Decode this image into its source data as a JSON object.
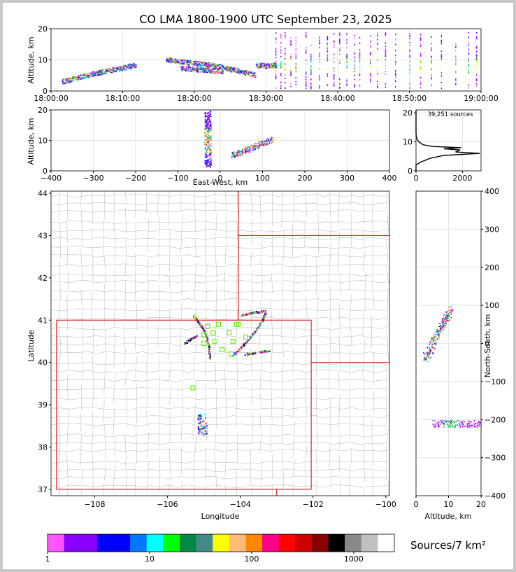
{
  "title": "CO LMA 1800-1900 UTC September 23, 2025",
  "colors": {
    "grid": "#e6e6e6",
    "county": "#c0c0c0",
    "state": "#dd0000",
    "station": "#66ee00",
    "hist_line": "#000000"
  },
  "time_altitude": {
    "type": "scatter",
    "xlabel": "",
    "ylabel": "Altitude, km",
    "x_ticks": [
      "18:00:00",
      "18:10:00",
      "18:20:00",
      "18:30:00",
      "18:40:00",
      "18:50:00",
      "19:00:00"
    ],
    "xlim_min": [
      0,
      60
    ],
    "y_ticks": [
      0,
      10,
      20
    ],
    "ylim": [
      0,
      20
    ],
    "segments": [
      {
        "t0": 1.5,
        "t1": 4.0,
        "a0": 3.0,
        "a1": 4.6
      },
      {
        "t0": 4.0,
        "t1": 7.0,
        "a0": 4.6,
        "a1": 6.2
      },
      {
        "t0": 7.0,
        "t1": 10.0,
        "a0": 6.2,
        "a1": 7.6
      },
      {
        "t0": 10.0,
        "t1": 11.8,
        "a0": 7.6,
        "a1": 8.4
      },
      {
        "t0": 16.0,
        "t1": 18.5,
        "a0": 10.2,
        "a1": 9.4
      },
      {
        "t0": 18.5,
        "t1": 22.5,
        "a0": 9.4,
        "a1": 8.4
      },
      {
        "t0": 22.5,
        "t1": 26.0,
        "a0": 8.4,
        "a1": 6.6
      },
      {
        "t0": 26.0,
        "t1": 28.5,
        "a0": 6.6,
        "a1": 5.2
      },
      {
        "t0": 18.0,
        "t1": 24.0,
        "a0": 7.5,
        "a1": 6.4
      },
      {
        "t0": 28.5,
        "t1": 31.5,
        "a0": 8.3,
        "a1": 8.3
      }
    ],
    "column_times": [
      31.3,
      32.0,
      32.6,
      33.4,
      34.1,
      35.5,
      36.2,
      37.4,
      38.5,
      39.4,
      40.2,
      41.2,
      42.3,
      43.0,
      44.5,
      45.5,
      46.6,
      48.0,
      50.0,
      51.5,
      53.0,
      54.4,
      56.4,
      58.2,
      59.3
    ]
  },
  "ew_altitude": {
    "type": "scatter",
    "xlabel": "East-West, km",
    "ylabel": "Altitude, km",
    "x_ticks": [
      -400,
      -300,
      -200,
      -100,
      0,
      100,
      200,
      300,
      400
    ],
    "xlim": [
      -400,
      400
    ],
    "y_ticks": [
      0,
      10,
      20
    ],
    "ylim": [
      0,
      20
    ],
    "column_x": -30,
    "column_alt": [
      1,
      20
    ],
    "band": {
      "x0": 25,
      "x1": 125,
      "a0": 5.0,
      "a1": 10.5
    }
  },
  "histogram": {
    "type": "line",
    "annotation": "39,251 sources",
    "x_ticks": [
      0,
      2000
    ],
    "xlim": [
      0,
      2800
    ],
    "y_ticks": [
      0,
      10,
      20
    ],
    "ylim": [
      0,
      21
    ],
    "profile": [
      [
        0,
        0
      ],
      [
        0,
        2
      ],
      [
        200,
        3
      ],
      [
        600,
        4.3
      ],
      [
        1200,
        5.3
      ],
      [
        2750,
        6.0
      ],
      [
        1700,
        6.5
      ],
      [
        1900,
        7.2
      ],
      [
        1200,
        7.6
      ],
      [
        1950,
        8.0
      ],
      [
        700,
        8.4
      ],
      [
        300,
        9
      ],
      [
        120,
        10
      ],
      [
        40,
        11
      ],
      [
        10,
        12
      ],
      [
        0,
        13
      ],
      [
        0,
        21
      ]
    ]
  },
  "map": {
    "type": "scatter",
    "xlabel": "Longitude",
    "ylabel": "Latitude",
    "x_ticks": [
      -108,
      -106,
      -104,
      -102,
      -100
    ],
    "xlim": [
      -109.2,
      -99.9
    ],
    "y_ticks": [
      37,
      38,
      39,
      40,
      41,
      42,
      43,
      44
    ],
    "ylim": [
      36.85,
      44.05
    ],
    "stations": [
      [
        -104.6,
        40.9
      ],
      [
        -104.3,
        40.7
      ],
      [
        -104.1,
        40.9
      ],
      [
        -104.5,
        40.3
      ],
      [
        -104.2,
        40.5
      ],
      [
        -103.85,
        40.6
      ],
      [
        -104.9,
        40.85
      ],
      [
        -104.75,
        40.7
      ],
      [
        -105.0,
        40.45
      ],
      [
        -104.7,
        40.5
      ],
      [
        -105.3,
        39.4
      ],
      [
        -104.05,
        40.9
      ],
      [
        -104.25,
        40.2
      ],
      [
        -105.0,
        40.65
      ]
    ],
    "state_lines": [
      [
        [
          -109.05,
          41.0
        ],
        [
          -102.05,
          41.0
        ],
        [
          -102.05,
          37.0
        ],
        [
          -109.05,
          37.0
        ],
        [
          -109.05,
          41.0
        ]
      ],
      [
        [
          -104.05,
          41.0
        ],
        [
          -104.05,
          44.05
        ]
      ],
      [
        [
          -104.05,
          43.0
        ],
        [
          -99.9,
          43.0
        ]
      ],
      [
        [
          -102.05,
          40.0
        ],
        [
          -99.9,
          40.0
        ]
      ],
      [
        [
          -103.0,
          37.0
        ],
        [
          -103.0,
          36.85
        ]
      ]
    ],
    "lightning_paths": [
      [
        [
          -105.3,
          41.12
        ],
        [
          -105.2,
          41.0
        ],
        [
          -105.05,
          40.85
        ],
        [
          -104.95,
          40.65
        ],
        [
          -104.88,
          40.4
        ],
        [
          -104.85,
          40.1
        ]
      ],
      [
        [
          -103.3,
          41.22
        ],
        [
          -103.4,
          41.0
        ],
        [
          -103.6,
          40.75
        ],
        [
          -103.8,
          40.55
        ],
        [
          -104.0,
          40.35
        ],
        [
          -104.25,
          40.15
        ]
      ],
      [
        [
          -104.0,
          41.12
        ],
        [
          -103.6,
          41.2
        ],
        [
          -103.3,
          41.22
        ]
      ],
      [
        [
          -105.55,
          40.45
        ],
        [
          -105.4,
          40.55
        ],
        [
          -105.2,
          40.65
        ]
      ],
      [
        [
          -103.9,
          40.2
        ],
        [
          -103.5,
          40.25
        ],
        [
          -103.2,
          40.3
        ]
      ]
    ],
    "cluster": {
      "lon": -105.05,
      "lat": 38.55
    }
  },
  "ns_altitude": {
    "type": "scatter",
    "xlabel": "Altitude, km",
    "ylabel": "North-South, km",
    "x_ticks": [
      0,
      10,
      20
    ],
    "xlim": [
      0,
      20
    ],
    "y_ticks": [
      -400,
      -300,
      -200,
      -100,
      0,
      100,
      200,
      300,
      400
    ],
    "ylim": [
      -400,
      400
    ],
    "band": {
      "a0": 2.5,
      "a1": 10.5,
      "n0": -40,
      "n1": 90
    },
    "blob": {
      "a0": 5,
      "a1": 20,
      "n": -210
    }
  },
  "colorbar": {
    "label": "Sources/7 km²",
    "tick_labels": [
      "1",
      "10",
      "100",
      "1000"
    ],
    "tick_values": [
      1,
      10,
      100,
      1000
    ],
    "range": [
      1,
      2500
    ],
    "colors": [
      "#ff55ff",
      "#8800ff",
      "#8800ff",
      "#0000ff",
      "#0000ff",
      "#0077ff",
      "#00ffff",
      "#00ff00",
      "#008844",
      "#448888",
      "#ffff00",
      "#ffbb77",
      "#ff8800",
      "#ff0088",
      "#ff0000",
      "#cc0000",
      "#880000",
      "#000000",
      "#888888",
      "#c0c0c0",
      "#ffffff"
    ]
  }
}
